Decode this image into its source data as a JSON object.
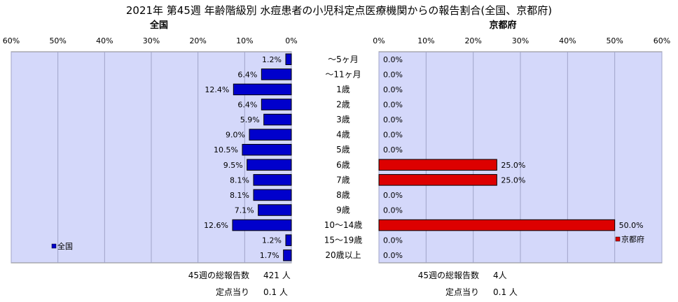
{
  "title": "2021年 第45週 年齢階級別 水痘患者の小児科定点医療機関からの報告割合(全国、京都府)",
  "chart_data": [
    {
      "type": "bar",
      "panel": "全国",
      "orientation": "horizontal-reversed",
      "categories": [
        "～5ヶ月",
        "～11ヶ月",
        "1歳",
        "2歳",
        "3歳",
        "4歳",
        "5歳",
        "6歳",
        "7歳",
        "8歳",
        "9歳",
        "10～14歳",
        "15～19歳",
        "20歳以上"
      ],
      "series": [
        {
          "name": "全国",
          "values": [
            1.2,
            6.4,
            12.4,
            6.4,
            5.9,
            9.0,
            10.5,
            9.5,
            8.1,
            8.1,
            7.1,
            12.6,
            1.2,
            1.7
          ]
        }
      ],
      "value_labels": [
        "1.2%",
        "6.4%",
        "12.4%",
        "6.4%",
        "5.9%",
        "9.0%",
        "10.5%",
        "9.5%",
        "8.1%",
        "8.1%",
        "7.1%",
        "12.6%",
        "1.2%",
        "1.7%"
      ],
      "xlim": [
        0,
        60
      ],
      "ticks": [
        "60%",
        "50%",
        "40%",
        "30%",
        "20%",
        "10%",
        "0%"
      ],
      "grid": true,
      "legend": "bottom-left",
      "colors": {
        "bar": "#0000cc",
        "plot_bg": "#d4d8fa"
      }
    },
    {
      "type": "bar",
      "panel": "京都府",
      "orientation": "horizontal",
      "categories": [
        "～5ヶ月",
        "～11ヶ月",
        "1歳",
        "2歳",
        "3歳",
        "4歳",
        "5歳",
        "6歳",
        "7歳",
        "8歳",
        "9歳",
        "10～14歳",
        "15～19歳",
        "20歳以上"
      ],
      "series": [
        {
          "name": "京都府",
          "values": [
            0,
            0,
            0,
            0,
            0,
            0,
            0,
            25.0,
            25.0,
            0,
            0,
            50.0,
            0,
            0
          ]
        }
      ],
      "value_labels": [
        "0.0%",
        "0.0%",
        "0.0%",
        "0.0%",
        "0.0%",
        "0.0%",
        "0.0%",
        "25.0%",
        "25.0%",
        "0.0%",
        "0.0%",
        "50.0%",
        "0.0%",
        "0.0%"
      ],
      "xlim": [
        0,
        60
      ],
      "ticks": [
        "0%",
        "10%",
        "20%",
        "30%",
        "40%",
        "50%",
        "60%"
      ],
      "grid": true,
      "legend": "bottom-right",
      "colors": {
        "bar": "#dd0000",
        "plot_bg": "#d4d8fa"
      }
    }
  ],
  "footer": {
    "national": {
      "total_label": "45週の総報告数",
      "total_value": "421 人",
      "per_label": "定点当り",
      "per_value": "0.1 人"
    },
    "kyoto": {
      "total_label": "45週の総報告数",
      "total_value": "4人",
      "per_label": "定点当り",
      "per_value": "0.1 人"
    }
  }
}
